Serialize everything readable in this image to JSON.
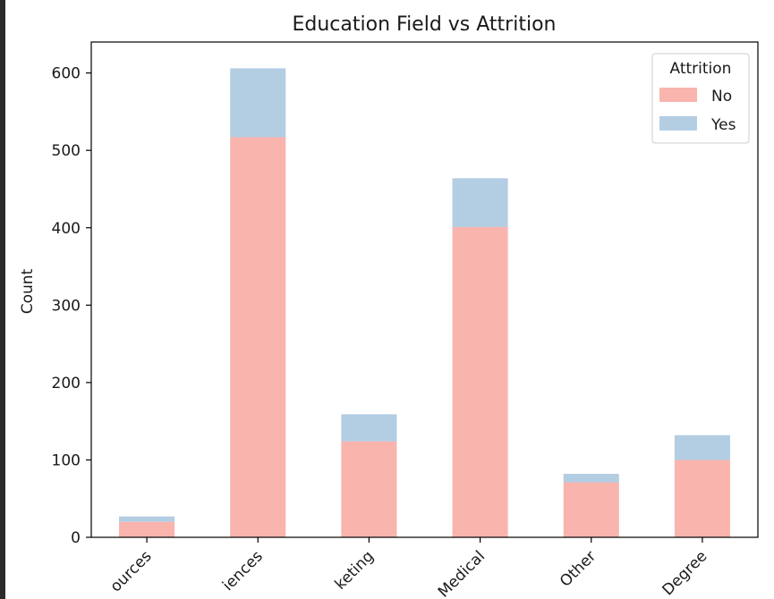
{
  "chart_data": {
    "type": "bar",
    "stacked": true,
    "title": "Education Field vs Attrition",
    "xlabel": "",
    "ylabel": "Count",
    "ylim": [
      0,
      640
    ],
    "yticks": [
      0,
      100,
      200,
      300,
      400,
      500,
      600
    ],
    "categories": [
      "Human Resources",
      "Life Sciences",
      "Marketing",
      "Medical",
      "Other",
      "Technical Degree"
    ],
    "category_labels_visible": [
      "ources",
      "iences",
      "keting",
      "Medical",
      "Other",
      "Degree"
    ],
    "series": [
      {
        "name": "No",
        "values": [
          20,
          517,
          124,
          401,
          71,
          100
        ],
        "color": "#f9b4ae"
      },
      {
        "name": "Yes",
        "values": [
          7,
          89,
          35,
          63,
          11,
          32
        ],
        "color": "#b3cde3"
      }
    ],
    "legend": {
      "title": "Attrition",
      "position": "top-right"
    },
    "grid": false
  }
}
